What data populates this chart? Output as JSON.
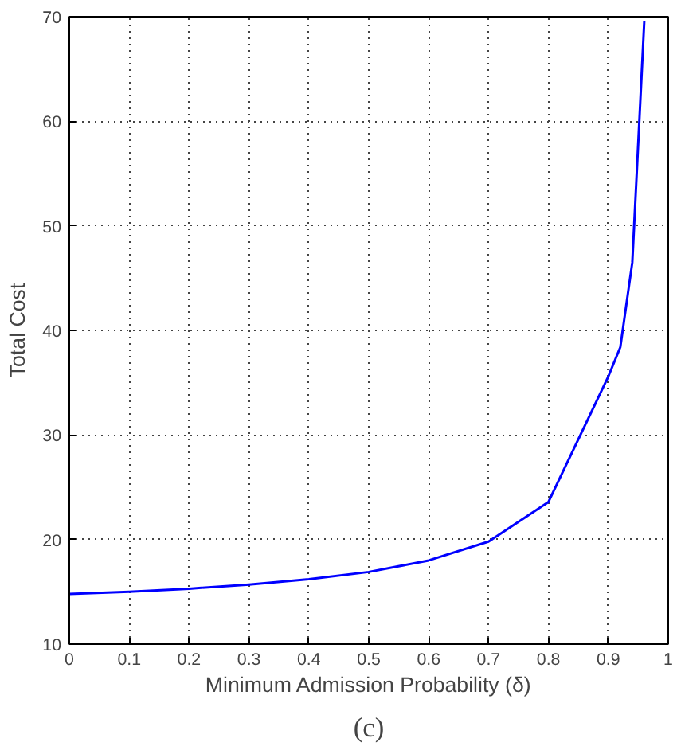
{
  "chart_data": {
    "type": "line",
    "xlabel": "Minimum Admission Probability (δ)",
    "ylabel": "Total Cost",
    "x": [
      0,
      0.1,
      0.2,
      0.3,
      0.4,
      0.5,
      0.6,
      0.7,
      0.8,
      0.9,
      0.92,
      0.94,
      0.96
    ],
    "series": [
      {
        "color": "#0000ff",
        "values": [
          14.8,
          15.0,
          15.3,
          15.7,
          16.2,
          16.9,
          18.0,
          19.8,
          23.6,
          35.6,
          38.4,
          46.5,
          69.6
        ]
      }
    ],
    "xlim": [
      0,
      1
    ],
    "ylim": [
      10,
      70
    ],
    "xticks": [
      0,
      0.1,
      0.2,
      0.3,
      0.4,
      0.5,
      0.6,
      0.7,
      0.8,
      0.9,
      1
    ],
    "yticks": [
      10,
      20,
      30,
      40,
      50,
      60,
      70
    ],
    "grid": true,
    "marker": "none",
    "line_style": "solid",
    "annotations": [
      "(c)"
    ]
  }
}
